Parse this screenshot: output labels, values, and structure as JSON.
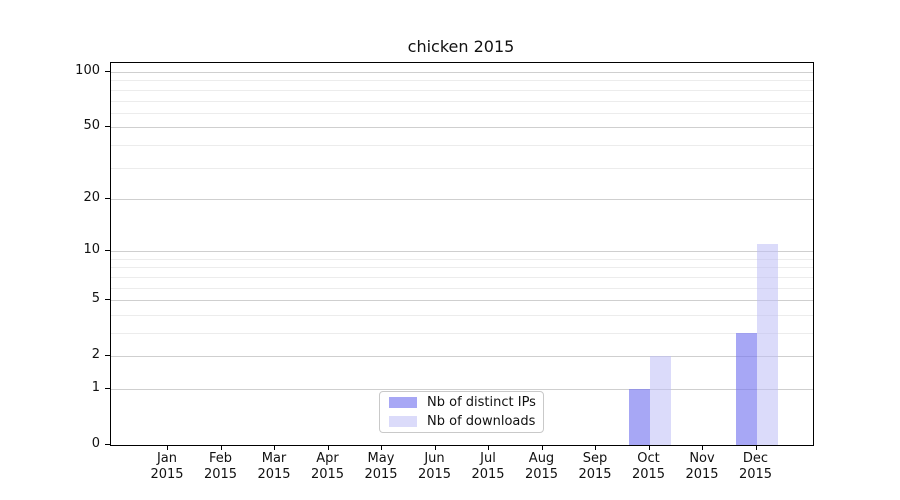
{
  "title": "chicken 2015",
  "legend": {
    "items": [
      {
        "label": "Nb of distinct IPs"
      },
      {
        "label": "Nb of downloads"
      }
    ]
  },
  "chart_data": {
    "type": "bar",
    "title": "chicken 2015",
    "categories": [
      "Jan",
      "Feb",
      "Mar",
      "Apr",
      "May",
      "Jun",
      "Jul",
      "Aug",
      "Sep",
      "Oct",
      "Nov",
      "Dec"
    ],
    "x_year_label": "2015",
    "series": [
      {
        "name": "Nb of distinct IPs",
        "color": "#7878f0",
        "alpha": 0.65,
        "values": [
          0,
          0,
          0,
          0,
          0,
          0,
          0,
          0,
          0,
          1,
          0,
          3
        ]
      },
      {
        "name": "Nb of downloads",
        "color": "#bebef5",
        "alpha": 0.55,
        "values": [
          0,
          0,
          0,
          0,
          0,
          0,
          0,
          0,
          0,
          2,
          0,
          11
        ]
      }
    ],
    "yscale": "log1p",
    "ylim": [
      0,
      112
    ],
    "yticks": [
      0,
      1,
      2,
      5,
      10,
      20,
      50,
      100
    ],
    "minor_gridlines": [
      3,
      4,
      6,
      7,
      8,
      9,
      30,
      40,
      60,
      70,
      80,
      90
    ],
    "grid": true,
    "legend_position": "lower center",
    "bar_color_major_hex": "#a7a7f5",
    "bar_color_light_hex": "#dbdbf9"
  }
}
